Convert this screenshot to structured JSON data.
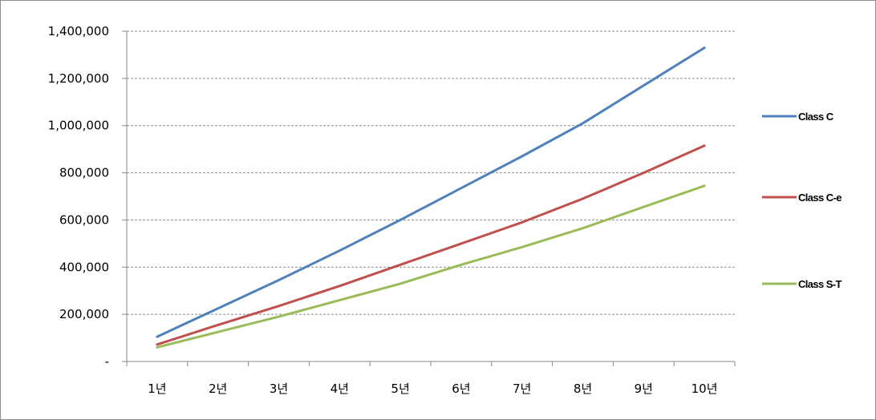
{
  "chart_data": {
    "type": "line",
    "title": "",
    "xlabel": "",
    "ylabel": "",
    "categories": [
      "1년",
      "2년",
      "3년",
      "4년",
      "5년",
      "6년",
      "7년",
      "8년",
      "9년",
      "10년"
    ],
    "ylim": [
      0,
      1400000
    ],
    "yticks": [
      0,
      200000,
      400000,
      600000,
      800000,
      1000000,
      1200000,
      1400000
    ],
    "ytick_labels": [
      "-",
      "200,000",
      "400,000",
      "600,000",
      "800,000",
      "1,000,000",
      "1,200,000",
      "1,400,000"
    ],
    "grid": true,
    "legend_position": "right",
    "series": [
      {
        "name": "Class C",
        "color": "#4f81bd",
        "values": [
          105000,
          225000,
          345000,
          470000,
          600000,
          735000,
          870000,
          1010000,
          1170000,
          1330000
        ]
      },
      {
        "name": "Class C-e",
        "color": "#c0504d",
        "values": [
          72000,
          155000,
          235000,
          320000,
          410000,
          500000,
          590000,
          690000,
          800000,
          915000
        ]
      },
      {
        "name": "Class S-T",
        "color": "#9bbb59",
        "values": [
          60000,
          125000,
          190000,
          260000,
          330000,
          410000,
          485000,
          565000,
          655000,
          745000
        ]
      }
    ]
  }
}
